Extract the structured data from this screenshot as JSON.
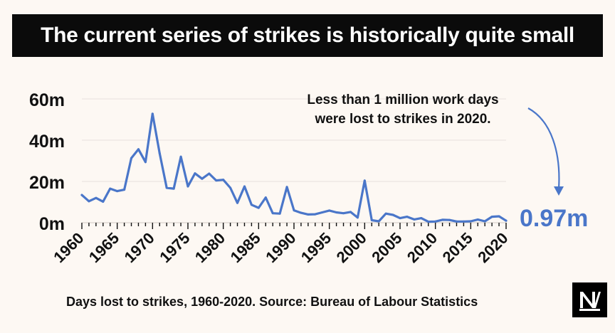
{
  "title": "The current series of strikes is historically quite small",
  "annotation_line1": "Less than 1 million work days",
  "annotation_line2": "were lost to strikes in 2020.",
  "final_value_label": "0.97m",
  "source": "Days lost to strikes, 1960-2020. Source: Bureau of Labour Statistics",
  "logo_label": "NM",
  "colors": {
    "line": "#4a76c9",
    "background": "#fdf8f3",
    "title_bg": "#0b0b0b"
  },
  "chart_data": {
    "type": "line",
    "x": [
      1960,
      1961,
      1962,
      1963,
      1964,
      1965,
      1966,
      1967,
      1968,
      1969,
      1970,
      1971,
      1972,
      1973,
      1974,
      1975,
      1976,
      1977,
      1978,
      1979,
      1980,
      1981,
      1982,
      1983,
      1984,
      1985,
      1986,
      1987,
      1988,
      1989,
      1990,
      1991,
      1992,
      1993,
      1994,
      1995,
      1996,
      1997,
      1998,
      1999,
      2000,
      2001,
      2002,
      2003,
      2004,
      2005,
      2006,
      2007,
      2008,
      2009,
      2010,
      2011,
      2012,
      2013,
      2014,
      2015,
      2016,
      2017,
      2018,
      2019,
      2020
    ],
    "values": [
      13.4,
      10.4,
      12.0,
      10.2,
      16.5,
      15.3,
      16.0,
      31.3,
      35.6,
      29.4,
      52.8,
      33.6,
      16.9,
      16.5,
      32.0,
      17.6,
      23.9,
      21.3,
      23.8,
      20.5,
      20.8,
      16.9,
      9.6,
      17.6,
      8.7,
      7.2,
      12.2,
      4.6,
      4.4,
      17.3,
      6.0,
      4.8,
      4.0,
      4.1,
      5.0,
      5.9,
      5.0,
      4.6,
      5.2,
      2.5,
      20.4,
      1.2,
      0.7,
      4.4,
      3.8,
      2.2,
      2.9,
      1.6,
      2.2,
      0.5,
      0.6,
      1.4,
      1.3,
      0.6,
      0.6,
      0.7,
      1.5,
      0.7,
      2.9,
      3.1,
      0.97
    ],
    "y_ticks": [
      "0m",
      "20m",
      "40m",
      "60m"
    ],
    "y_tick_values": [
      0,
      20,
      40,
      60
    ],
    "x_tick_labels": [
      "1960",
      "1965",
      "1970",
      "1975",
      "1980",
      "1985",
      "1990",
      "1995",
      "2000",
      "2005",
      "2010",
      "2015",
      "2020"
    ],
    "ylim": [
      0,
      60
    ],
    "xlim": [
      1960,
      2020
    ],
    "grid": "horizontal",
    "title": "",
    "xlabel": "",
    "ylabel": ""
  }
}
